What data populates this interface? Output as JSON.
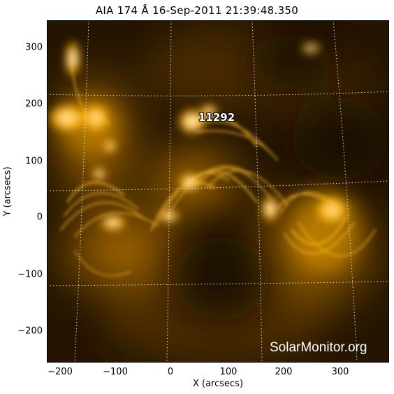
{
  "title": "AIA 174 Å 16-Sep-2011 21:39:48.350",
  "x_axis": {
    "label": "X (arcsecs)",
    "ticks": [
      "−200",
      "−100",
      "0",
      "100",
      "200",
      "300"
    ]
  },
  "y_axis": {
    "label": "Y (arcsecs)",
    "ticks": [
      "300",
      "200",
      "100",
      "0",
      "−100",
      "−200"
    ]
  },
  "active_region_label": "11292",
  "watermark": "SolarMonitor.org",
  "colors": {
    "background": "#ffffff",
    "image_dark": "#1c1000",
    "image_mid": "#8a5400",
    "image_bright": "#ffb300",
    "core": "#ffffff",
    "grid": "#ffffff"
  }
}
